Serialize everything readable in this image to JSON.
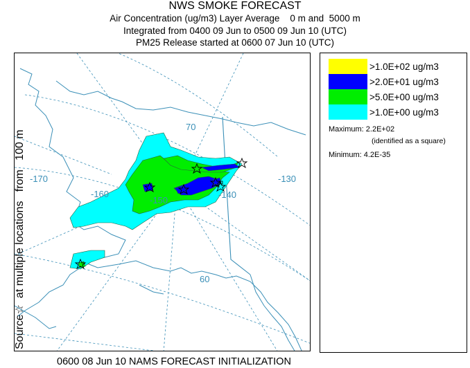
{
  "header": {
    "title": "NWS SMOKE FORECAST",
    "line2": "Air Concentration (ug/m3) Layer Average    0 m and  5000 m",
    "line3": "Integrated from 0400 09 Jun to 0500 09 Jun 10 (UTC)",
    "line4": "PM25 Release started at 0600 07 Jun 10 (UTC)"
  },
  "side_label": "Source☆  at multiple locations   from   100 m",
  "map": {
    "graticule_labels": {
      "lon_170": "-170",
      "lon_160": "-160",
      "lon_150": "-150",
      "lon_140": "-140",
      "lon_130": "-130",
      "lat_70": "70",
      "lat_60": "60"
    },
    "source_marker_icon": "star-outline-icon",
    "colors": {
      "graticule": "#3a8fb7",
      "coastline": "#3a8fb7",
      "smoke_outline": "#2a5f3a"
    }
  },
  "legend": {
    "items": [
      {
        "label": ">1.0E+02 ug/m3",
        "color": "#ffff00"
      },
      {
        "label": ">2.0E+01 ug/m3",
        "color": "#0000ff"
      },
      {
        "label": ">5.0E+00 ug/m3",
        "color": "#00ee00"
      },
      {
        "label": ">1.0E+00 ug/m3",
        "color": "#00ffff"
      }
    ],
    "maximum_label": "Maximum: 2.2E+02",
    "maximum_note": "(identified as a square)",
    "minimum_label": "Minimum: 4.2E-35"
  },
  "footer": "0600 08 Jun 10 NAMS FORECAST INITIALIZATION"
}
